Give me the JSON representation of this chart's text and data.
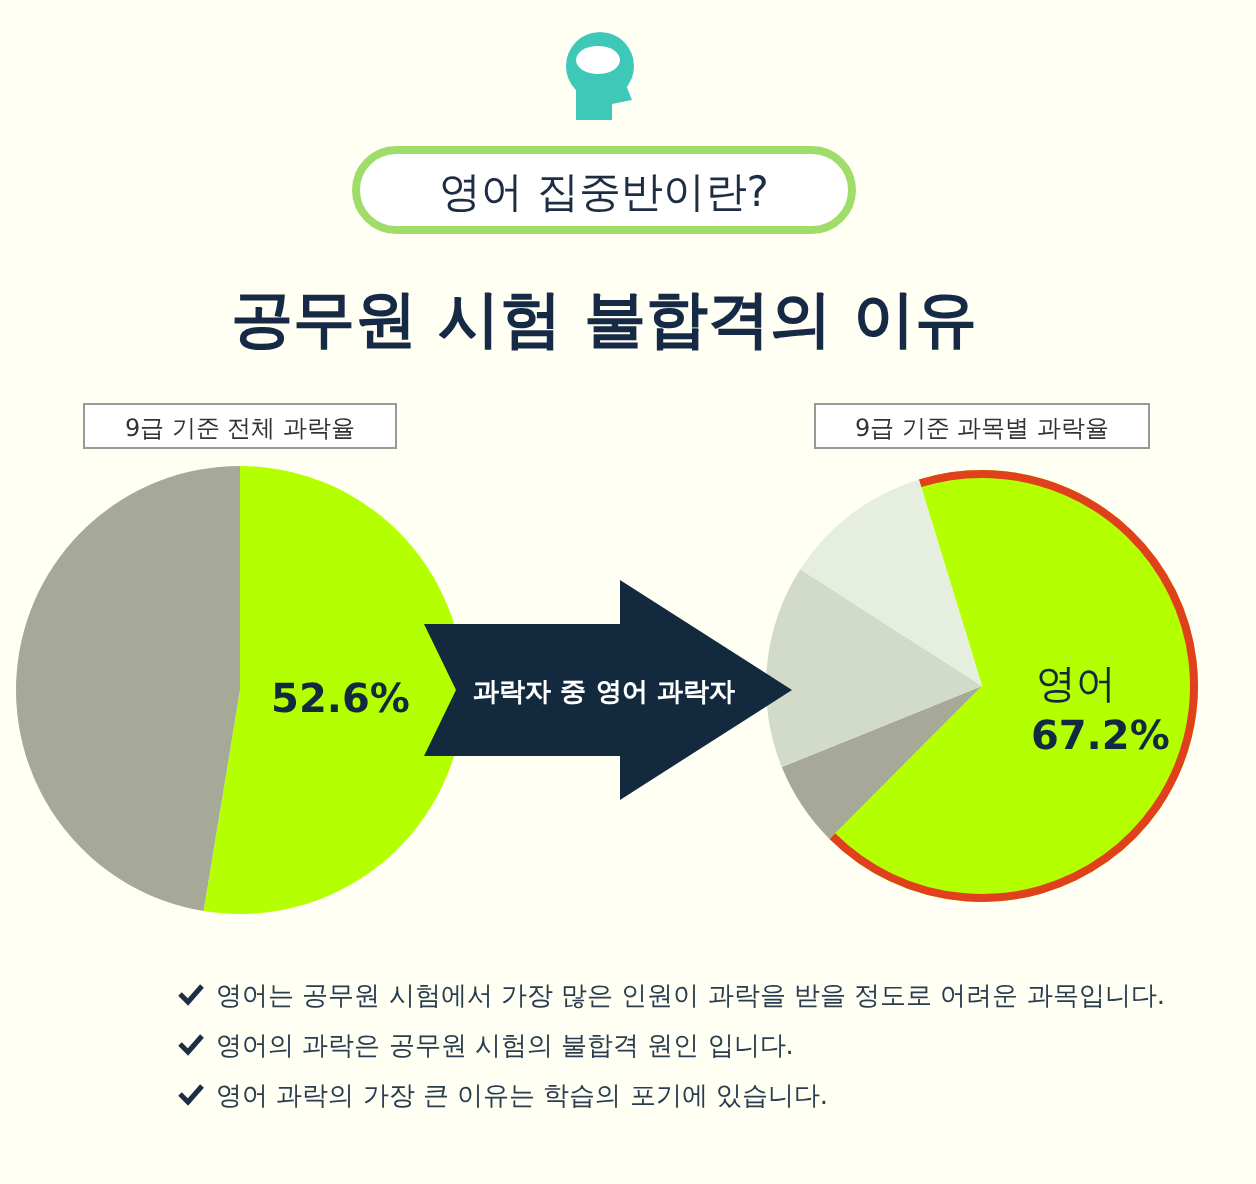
{
  "chart_data": [
    {
      "type": "other",
      "title": "공무원 시험 불합격의 이유",
      "subtitle": "영어 집중반이란?",
      "annotations": [
        "과락자 중 영어 과락자",
        "영어는 공무원 시험에서 가장 많은 인원이 과락을 받을 정도로 어려운 과목입니다.",
        "영어의 과락은 공무원 시험의 불합격 원인 입니다.",
        "영어 과락의 가장 큰 이유는 학습의 포기에 있습니다."
      ]
    },
    {
      "type": "pie",
      "title": "9급 기준 전체 과락율",
      "categories": [
        null,
        null
      ],
      "values": [
        52.6,
        47.4
      ],
      "colors": [
        "#b4ff00",
        "#a6a898"
      ],
      "value_labels": [
        "52.6%",
        null
      ]
    },
    {
      "type": "pie",
      "title": "9급 기준 과목별 과락율",
      "categories": [
        "영어",
        null,
        null,
        null
      ],
      "values": [
        67.2,
        6.4,
        15.2,
        11.2
      ],
      "colors": [
        "#b4ff00",
        "#a6a898",
        "#d2dac8",
        "#e6efdf"
      ],
      "value_labels": [
        "67.2%",
        null,
        null,
        null
      ]
    }
  ]
}
